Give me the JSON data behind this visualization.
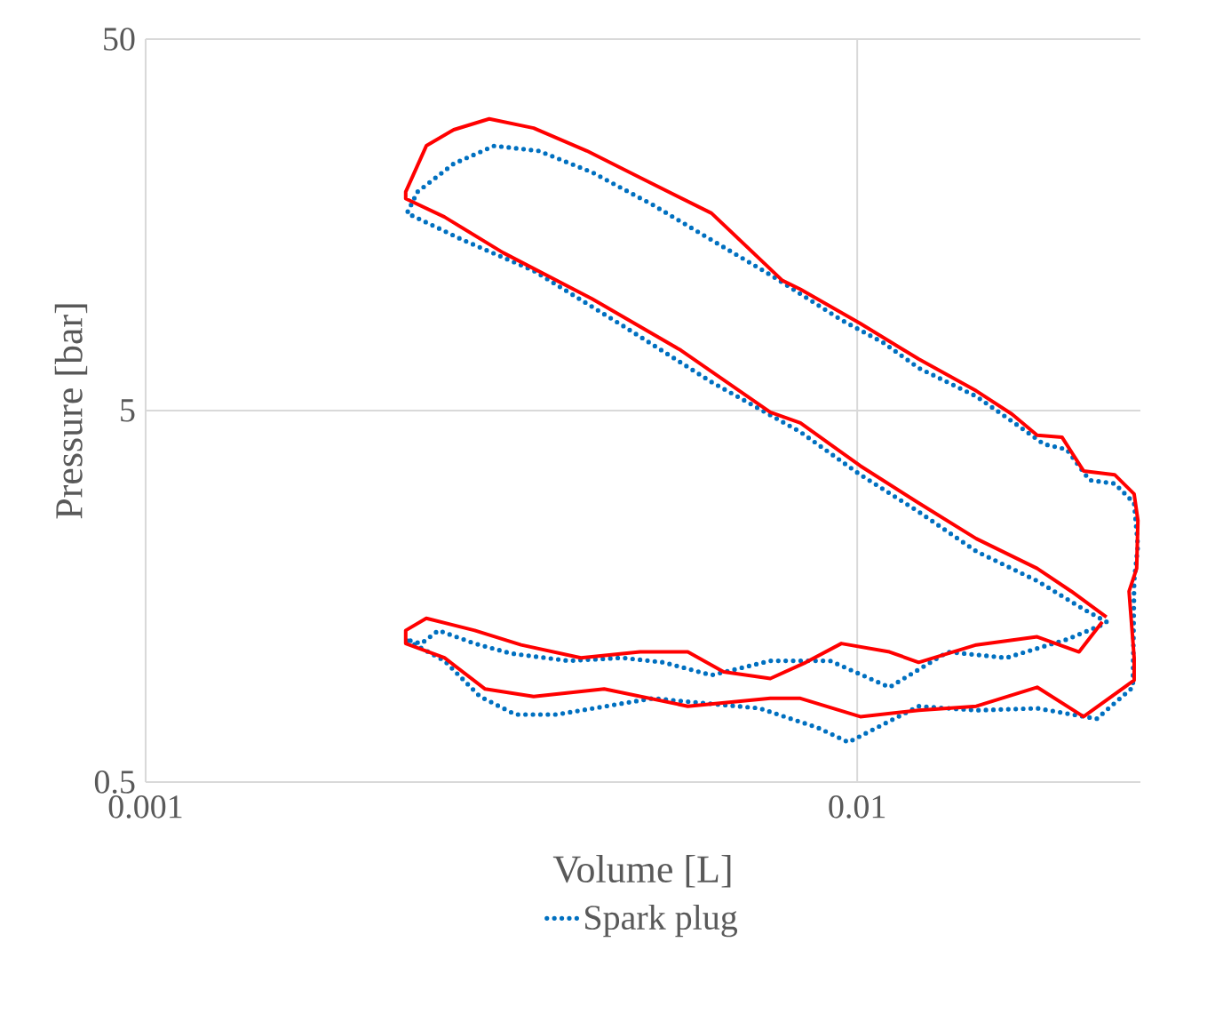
{
  "chart_data": {
    "type": "line",
    "xlabel": "Volume [L]",
    "ylabel": "Pressure [bar]",
    "log": "xy",
    "xlim": [
      0.001,
      0.025
    ],
    "ylim": [
      0.5,
      50
    ],
    "xticks": [
      0.001,
      0.01
    ],
    "yticks": [
      0.5,
      5,
      50
    ],
    "grid": true,
    "legend": "bottom",
    "marker": "none",
    "series": [
      {
        "name": "Spark plug",
        "color": "#0070c0",
        "line_style": "dotted",
        "x": [
          0.0224,
          0.0208,
          0.0179,
          0.0147,
          0.0122,
          0.0101,
          0.00832,
          0.00624,
          0.00467,
          0.00351,
          0.00279,
          0.00233,
          0.00241,
          0.00271,
          0.00309,
          0.00357,
          0.00424,
          0.00516,
          0.00624,
          0.00755,
          0.0095,
          0.0109,
          0.0122,
          0.0147,
          0.0165,
          0.0183,
          0.0197,
          0.0212,
          0.023,
          0.0245,
          0.0248,
          0.0245,
          0.0244,
          0.0217,
          0.0179,
          0.0147,
          0.0122,
          0.00972,
          0.00881,
          0.00729,
          0.00516,
          0.00378,
          0.00331,
          0.00295,
          0.00263,
          0.00232,
          0.00244,
          0.00258,
          0.0029,
          0.00326,
          0.00393,
          0.00467,
          0.00534,
          0.00624,
          0.00755,
          0.00916,
          0.0111,
          0.0134,
          0.0162,
          0.0197,
          0.0222
        ],
        "values": [
          1.35,
          1.46,
          1.74,
          2.09,
          2.67,
          3.36,
          4.38,
          5.97,
          8.49,
          11.9,
          14.4,
          17.0,
          19.4,
          23.1,
          25.8,
          25.0,
          21.9,
          17.9,
          14.4,
          11.6,
          8.77,
          7.6,
          6.51,
          5.46,
          4.68,
          4.06,
          3.93,
          3.25,
          3.18,
          2.82,
          2.16,
          1.74,
          0.9,
          0.74,
          0.79,
          0.78,
          0.8,
          0.64,
          0.7,
          0.79,
          0.84,
          0.76,
          0.76,
          0.85,
          1.06,
          1.21,
          1.18,
          1.28,
          1.18,
          1.11,
          1.06,
          1.08,
          1.05,
          0.97,
          1.06,
          1.06,
          0.9,
          1.12,
          1.08,
          1.21,
          1.33
        ]
      },
      {
        "color": "#ff0000",
        "line_style": "solid",
        "x": [
          0.0224,
          0.02,
          0.0179,
          0.0147,
          0.0122,
          0.0101,
          0.00832,
          0.00755,
          0.00565,
          0.00424,
          0.00318,
          0.00263,
          0.00232,
          0.00232,
          0.00248,
          0.00271,
          0.00304,
          0.00351,
          0.00417,
          0.00495,
          0.00624,
          0.00785,
          0.00832,
          0.0101,
          0.0122,
          0.0147,
          0.0165,
          0.0179,
          0.0194,
          0.0208,
          0.023,
          0.0245,
          0.0248,
          0.0247,
          0.0241,
          0.0245,
          0.0245,
          0.0208,
          0.0179,
          0.0147,
          0.0122,
          0.0101,
          0.00832,
          0.00755,
          0.00578,
          0.00441,
          0.00351,
          0.003,
          0.00263,
          0.00232,
          0.00232,
          0.00248,
          0.0029,
          0.00337,
          0.00409,
          0.00495,
          0.00578,
          0.00649,
          0.00755,
          0.00847,
          0.0095,
          0.0111,
          0.0122,
          0.0147,
          0.0179,
          0.0205,
          0.0221
        ],
        "values": [
          1.39,
          1.63,
          1.88,
          2.26,
          2.82,
          3.55,
          4.63,
          4.95,
          7.27,
          10.0,
          13.3,
          16.6,
          18.6,
          19.4,
          25.8,
          28.5,
          30.5,
          28.8,
          25.0,
          21.2,
          17.0,
          11.2,
          10.6,
          8.58,
          6.88,
          5.65,
          4.89,
          4.29,
          4.24,
          3.44,
          3.36,
          2.98,
          2.53,
          1.88,
          1.63,
          1.08,
          0.94,
          0.75,
          0.9,
          0.8,
          0.78,
          0.75,
          0.84,
          0.84,
          0.8,
          0.89,
          0.85,
          0.89,
          1.08,
          1.18,
          1.28,
          1.38,
          1.28,
          1.17,
          1.08,
          1.12,
          1.12,
          0.99,
          0.95,
          1.05,
          1.18,
          1.12,
          1.05,
          1.17,
          1.23,
          1.12,
          1.35
        ]
      }
    ]
  }
}
